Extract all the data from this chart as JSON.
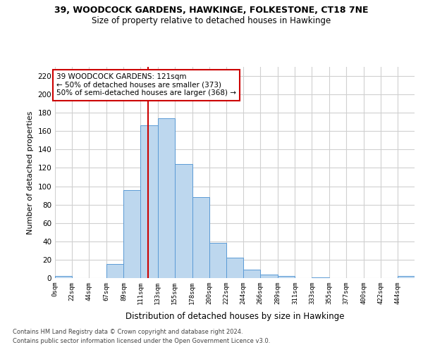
{
  "title1": "39, WOODCOCK GARDENS, HAWKINGE, FOLKESTONE, CT18 7NE",
  "title2": "Size of property relative to detached houses in Hawkinge",
  "xlabel": "Distribution of detached houses by size in Hawkinge",
  "ylabel": "Number of detached properties",
  "footer1": "Contains HM Land Registry data © Crown copyright and database right 2024.",
  "footer2": "Contains public sector information licensed under the Open Government Licence v3.0.",
  "annotation_line1": "39 WOODCOCK GARDENS: 121sqm",
  "annotation_line2": "← 50% of detached houses are smaller (373)",
  "annotation_line3": "50% of semi-detached houses are larger (368) →",
  "property_size": 121,
  "bar_left_edges": [
    0,
    22,
    44,
    67,
    89,
    111,
    133,
    155,
    178,
    200,
    222,
    244,
    266,
    289,
    311,
    333,
    355,
    377,
    400,
    422,
    444
  ],
  "bar_widths": [
    22,
    22,
    23,
    22,
    22,
    22,
    22,
    23,
    22,
    22,
    22,
    22,
    23,
    22,
    22,
    22,
    22,
    23,
    22,
    22,
    22
  ],
  "bar_heights": [
    2,
    0,
    0,
    15,
    96,
    166,
    174,
    124,
    88,
    38,
    22,
    9,
    4,
    2,
    0,
    1,
    0,
    0,
    0,
    0,
    2
  ],
  "bar_color": "#bdd7ee",
  "bar_edge_color": "#5b9bd5",
  "vline_x": 121,
  "vline_color": "#cc0000",
  "annotation_box_color": "#cc0000",
  "background_color": "#ffffff",
  "grid_color": "#d0d0d0",
  "tick_labels": [
    "0sqm",
    "22sqm",
    "44sqm",
    "67sqm",
    "89sqm",
    "111sqm",
    "133sqm",
    "155sqm",
    "178sqm",
    "200sqm",
    "222sqm",
    "244sqm",
    "266sqm",
    "289sqm",
    "311sqm",
    "333sqm",
    "355sqm",
    "377sqm",
    "400sqm",
    "422sqm",
    "444sqm"
  ],
  "ylim": [
    0,
    230
  ],
  "yticks": [
    0,
    20,
    40,
    60,
    80,
    100,
    120,
    140,
    160,
    180,
    200,
    220
  ]
}
